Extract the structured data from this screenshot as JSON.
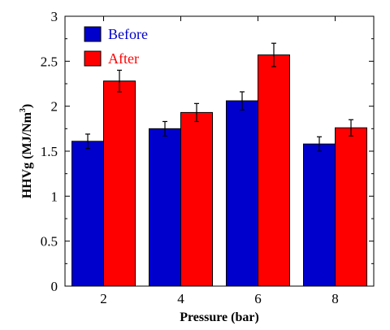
{
  "chart_data": {
    "type": "bar",
    "categories": [
      "2",
      "4",
      "6",
      "8"
    ],
    "series": [
      {
        "name": "Before",
        "color": "#0000CC",
        "values": [
          1.61,
          1.75,
          2.06,
          1.58
        ],
        "errors": [
          0.08,
          0.08,
          0.1,
          0.08
        ]
      },
      {
        "name": "After",
        "color": "#FF0000",
        "values": [
          2.28,
          1.93,
          2.57,
          1.76
        ],
        "errors": [
          0.12,
          0.1,
          0.13,
          0.09
        ]
      }
    ],
    "xlabel": "Pressure (bar)",
    "ylabel_main": "HHVg (MJ/Nm",
    "ylabel_sup": "3",
    "ylabel_close": ")",
    "ylim": [
      0,
      3
    ],
    "yticks": [
      "0",
      "0.5",
      "1",
      "1.5",
      "2",
      "2.5",
      "3"
    ],
    "legend_position": "top-left",
    "grid": false
  }
}
